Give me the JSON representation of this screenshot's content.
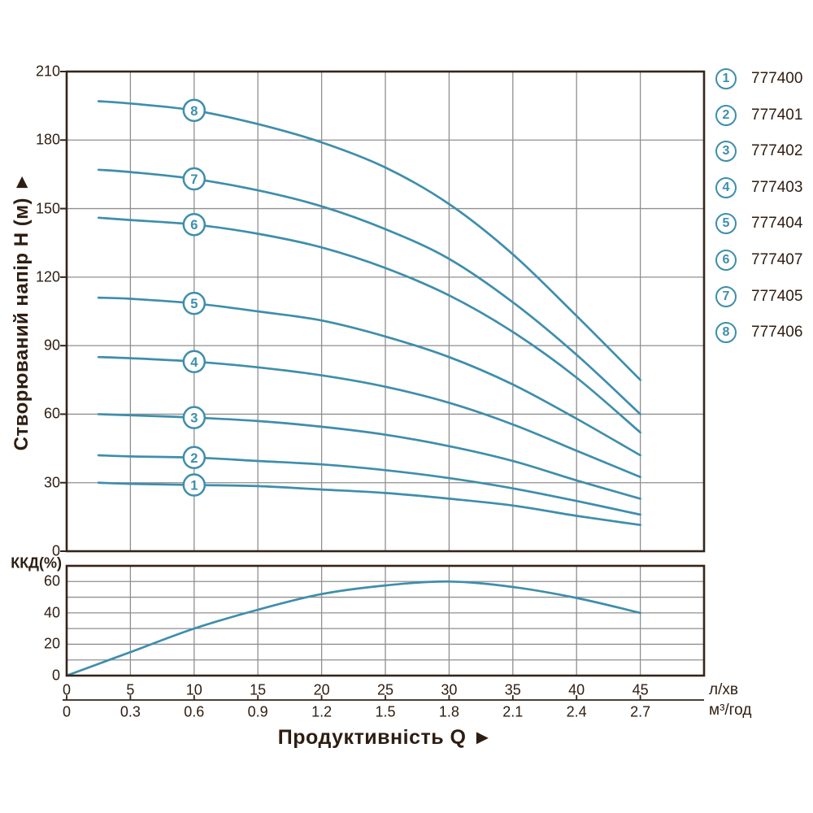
{
  "colors": {
    "curve": "#3e8eac",
    "grid": "#8f8f8f",
    "plot_border": "#362419",
    "text": "#2e1d11",
    "background": "#ffffff"
  },
  "y_axis_title": "Створюваний напір H (м) ►",
  "x_axis_title": "Продуктивність  Q ►",
  "efficiency_axis_label": "ККД(%)",
  "units": {
    "flow_lmin": "л/хв",
    "flow_m3h": "м³/год"
  },
  "legend": [
    {
      "num": "1",
      "model": "777400"
    },
    {
      "num": "2",
      "model": "777401"
    },
    {
      "num": "3",
      "model": "777402"
    },
    {
      "num": "4",
      "model": "777403"
    },
    {
      "num": "5",
      "model": "777404"
    },
    {
      "num": "6",
      "model": "777407"
    },
    {
      "num": "7",
      "model": "777405"
    },
    {
      "num": "8",
      "model": "777406"
    }
  ],
  "chart_data": [
    {
      "type": "line",
      "title": "Pump head curves H(Q)",
      "ylabel": "Створюваний напір H (м)",
      "xlabel": "Продуктивність Q",
      "ylim": [
        0,
        210
      ],
      "xlim": [
        0,
        50
      ],
      "grid": true,
      "y_ticks": [
        0,
        30,
        60,
        90,
        120,
        150,
        180,
        210
      ],
      "x_ticks_lmin": [
        "0",
        "5",
        "10",
        "15",
        "20",
        "25",
        "30",
        "35",
        "40",
        "45"
      ],
      "x_ticks_m3h": [
        "0",
        "0.3",
        "0.6",
        "0.9",
        "1.2",
        "1.5",
        "1.8",
        "2.1",
        "2.4",
        "2.7"
      ],
      "curve_label_x": 10,
      "x": [
        2.5,
        5,
        10,
        15,
        20,
        25,
        30,
        35,
        40,
        45
      ],
      "series": [
        {
          "name": "1",
          "model": "777400",
          "values": [
            30,
            29.5,
            29,
            28.5,
            27,
            25.5,
            23,
            20,
            15.5,
            11.5
          ]
        },
        {
          "name": "2",
          "model": "777401",
          "values": [
            42,
            41.5,
            41,
            39.5,
            38,
            35.5,
            32,
            27.5,
            22,
            16
          ]
        },
        {
          "name": "3",
          "model": "777402",
          "values": [
            60,
            59.5,
            58.5,
            57,
            54.5,
            51,
            46,
            39.5,
            31,
            23
          ]
        },
        {
          "name": "4",
          "model": "777403",
          "values": [
            85,
            84.5,
            83,
            80.5,
            77,
            72,
            65,
            55.5,
            44,
            32.5
          ]
        },
        {
          "name": "5",
          "model": "777404",
          "values": [
            111,
            110.5,
            108.5,
            105,
            101,
            94,
            85,
            73,
            58,
            42
          ]
        },
        {
          "name": "6",
          "model": "777407",
          "values": [
            146,
            145,
            143,
            139,
            133,
            124,
            112,
            96,
            76,
            52
          ]
        },
        {
          "name": "7",
          "model": "777405",
          "values": [
            167,
            166,
            163,
            158,
            151,
            141,
            128,
            109,
            86,
            60
          ]
        },
        {
          "name": "8",
          "model": "777406",
          "values": [
            197,
            196,
            193,
            187,
            179,
            168,
            152,
            130,
            103,
            75
          ]
        }
      ]
    },
    {
      "type": "line",
      "title": "Efficiency",
      "ylabel": "ККД(%)",
      "ylim": [
        0,
        70
      ],
      "xlim": [
        0,
        50
      ],
      "grid": true,
      "y_ticks": [
        0,
        20,
        40,
        60
      ],
      "x": [
        0,
        5,
        10,
        15,
        20,
        25,
        30,
        35,
        40,
        45
      ],
      "values": [
        0,
        15,
        30,
        42,
        52,
        57.5,
        60,
        56.5,
        49.5,
        40
      ]
    }
  ]
}
